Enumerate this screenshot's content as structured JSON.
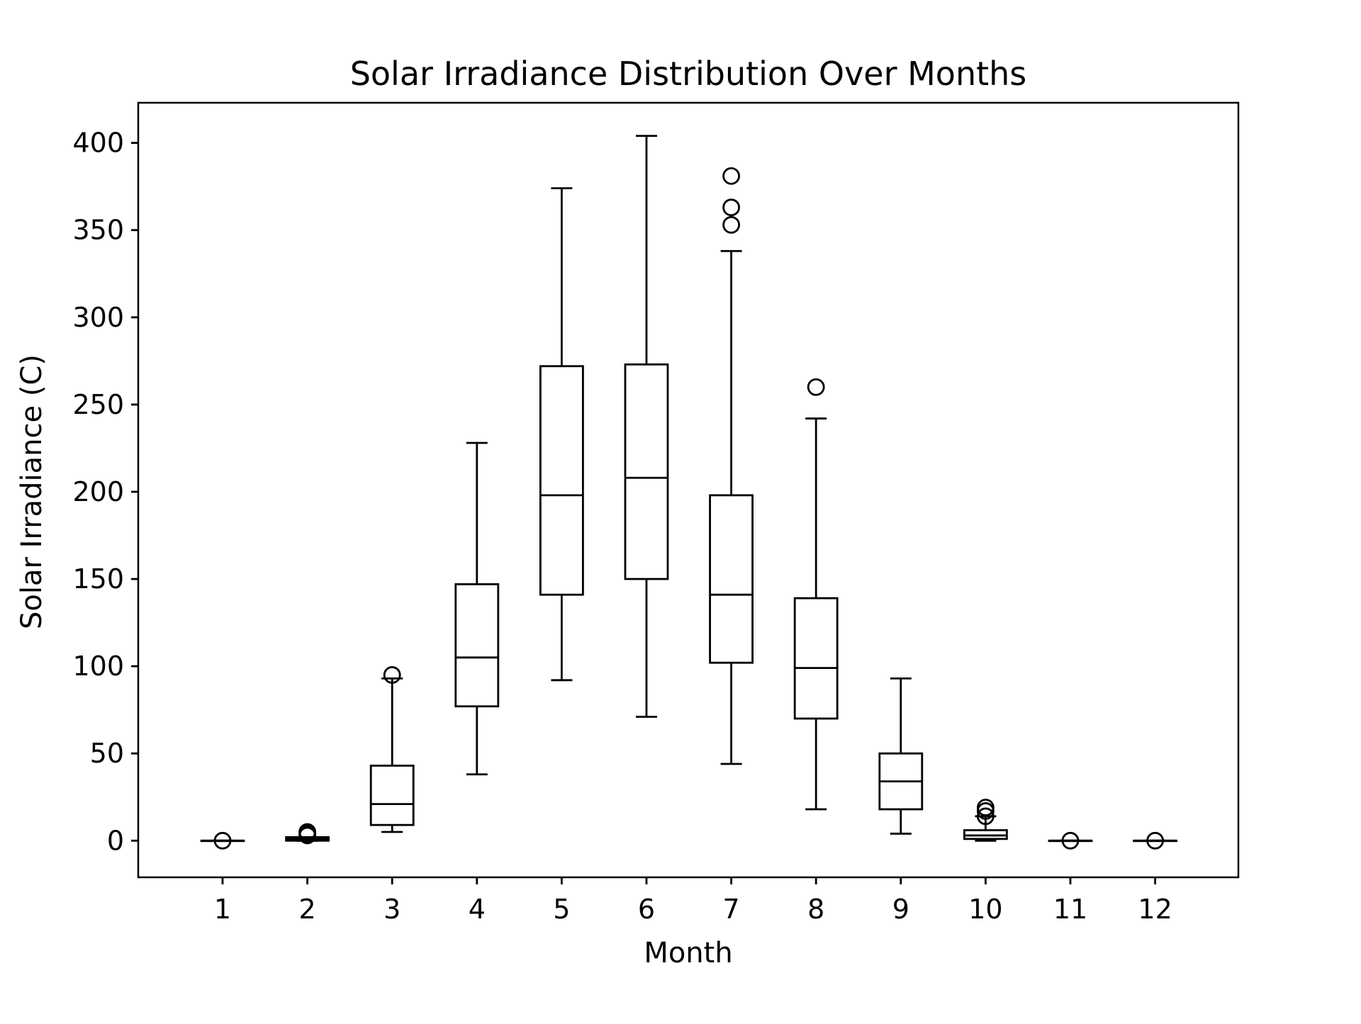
{
  "chart_data": {
    "type": "box",
    "title": "Solar Irradiance Distribution Over Months",
    "xlabel": "Month",
    "ylabel": "Solar Irradiance (C)",
    "ylim": [
      -21,
      423
    ],
    "yticks": [
      0,
      50,
      100,
      150,
      200,
      250,
      300,
      350,
      400
    ],
    "grid": false,
    "categories": [
      "1",
      "2",
      "3",
      "4",
      "5",
      "6",
      "7",
      "8",
      "9",
      "10",
      "11",
      "12"
    ],
    "boxes": [
      {
        "month": "1",
        "whisker_low": 0,
        "q1": 0,
        "median": 0,
        "q3": 0,
        "whisker_high": 0,
        "outliers": [
          0
        ]
      },
      {
        "month": "2",
        "whisker_low": 0,
        "q1": 0,
        "median": 1,
        "q3": 2,
        "whisker_high": 2,
        "outliers": [
          5,
          4,
          3
        ]
      },
      {
        "month": "3",
        "whisker_low": 5,
        "q1": 9,
        "median": 21,
        "q3": 43,
        "whisker_high": 93,
        "outliers": [
          95
        ]
      },
      {
        "month": "4",
        "whisker_low": 38,
        "q1": 77,
        "median": 105,
        "q3": 147,
        "whisker_high": 228,
        "outliers": []
      },
      {
        "month": "5",
        "whisker_low": 92,
        "q1": 141,
        "median": 198,
        "q3": 272,
        "whisker_high": 374,
        "outliers": []
      },
      {
        "month": "6",
        "whisker_low": 71,
        "q1": 150,
        "median": 208,
        "q3": 273,
        "whisker_high": 404,
        "outliers": []
      },
      {
        "month": "7",
        "whisker_low": 44,
        "q1": 102,
        "median": 141,
        "q3": 198,
        "whisker_high": 338,
        "outliers": [
          353,
          363,
          381
        ]
      },
      {
        "month": "8",
        "whisker_low": 18,
        "q1": 70,
        "median": 99,
        "q3": 139,
        "whisker_high": 242,
        "outliers": [
          260
        ]
      },
      {
        "month": "9",
        "whisker_low": 4,
        "q1": 18,
        "median": 34,
        "q3": 50,
        "whisker_high": 93,
        "outliers": []
      },
      {
        "month": "10",
        "whisker_low": 0,
        "q1": 1,
        "median": 3,
        "q3": 6,
        "whisker_high": 14,
        "outliers": [
          14,
          17,
          19
        ]
      },
      {
        "month": "11",
        "whisker_low": 0,
        "q1": 0,
        "median": 0,
        "q3": 0,
        "whisker_high": 0,
        "outliers": [
          0
        ]
      },
      {
        "month": "12",
        "whisker_low": 0,
        "q1": 0,
        "median": 0,
        "q3": 0,
        "whisker_high": 0,
        "outliers": [
          0
        ]
      }
    ]
  }
}
